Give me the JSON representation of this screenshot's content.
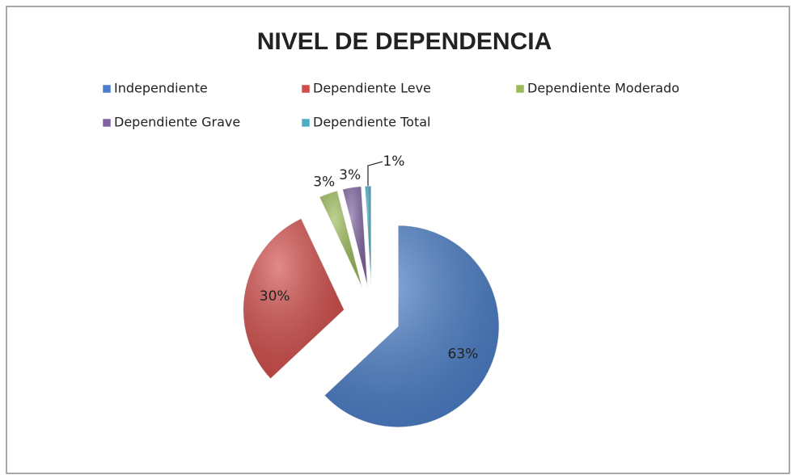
{
  "chart_data": {
    "type": "pie",
    "title": "NIVEL DE DEPENDENCIA",
    "categories": [
      "Independiente",
      "Dependiente Leve",
      "Dependiente Moderado",
      "Dependiente Grave",
      "Dependiente Total"
    ],
    "values": [
      63,
      30,
      3,
      3,
      1
    ],
    "value_labels": [
      "63%",
      "30%",
      "3%",
      "3%",
      "1%"
    ],
    "colors": [
      "#4a7ec8",
      "#d24c49",
      "#9bbb59",
      "#8064a2",
      "#4bacc6"
    ]
  }
}
